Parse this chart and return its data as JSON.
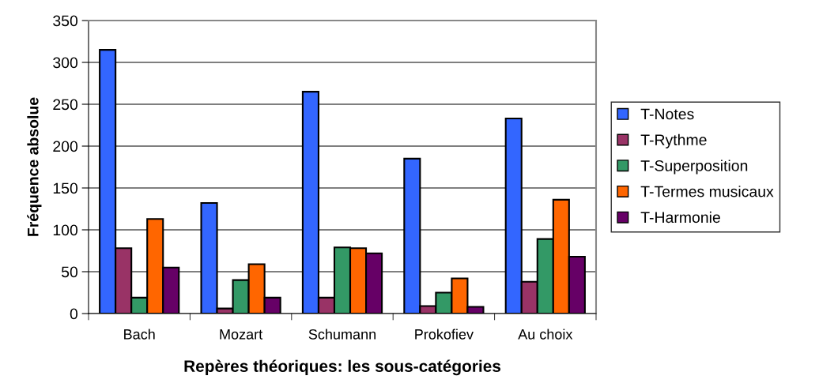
{
  "chart_data": {
    "type": "bar",
    "xlabel": "Repères théoriques: les sous-catégories",
    "ylabel": "Fréquence absolue",
    "categories": [
      "Bach",
      "Mozart",
      "Schumann",
      "Prokofiev",
      "Au choix"
    ],
    "series": [
      {
        "name": "T-Notes",
        "color": "#3366ff",
        "values": [
          315,
          132,
          265,
          185,
          233
        ]
      },
      {
        "name": "T-Rythme",
        "color": "#993366",
        "values": [
          78,
          6,
          19,
          9,
          38
        ]
      },
      {
        "name": "T-Superposition",
        "color": "#339966",
        "values": [
          19,
          40,
          79,
          25,
          89
        ]
      },
      {
        "name": "T-Termes musicaux",
        "color": "#ff6600",
        "values": [
          113,
          59,
          78,
          42,
          136
        ]
      },
      {
        "name": "T-Harmonie",
        "color": "#660066",
        "values": [
          55,
          19,
          72,
          8,
          68
        ]
      }
    ],
    "ylim": [
      0,
      350
    ],
    "yticks": [
      0,
      50,
      100,
      150,
      200,
      250,
      300,
      350
    ],
    "grid": "y",
    "legend": "right"
  }
}
